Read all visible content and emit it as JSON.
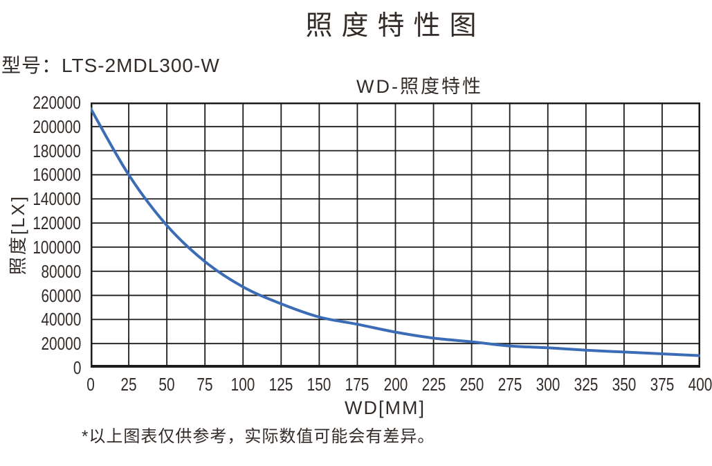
{
  "page_title": "照度特性图",
  "model_label": "型号：LTS-2MDL300-W",
  "footnote": "*以上图表仅供参考，实际数值可能会有差异。",
  "chart_data": {
    "type": "line",
    "title": "WD-照度特性",
    "xlabel": "WD[MM]",
    "ylabel": "照度[LX]",
    "x": [
      0,
      25,
      50,
      75,
      100,
      125,
      150,
      175,
      200,
      225,
      250,
      275,
      300,
      325,
      350,
      375,
      400
    ],
    "values": [
      215000,
      160000,
      118000,
      88000,
      67000,
      53000,
      42000,
      36000,
      29500,
      24500,
      21500,
      18000,
      16500,
      14500,
      13000,
      11500,
      10000
    ],
    "xlim": [
      0,
      400
    ],
    "ylim": [
      0,
      220000
    ],
    "x_tick_step": 25,
    "y_tick_step": 20000,
    "grid": true,
    "legend_position": "none",
    "line_color": "#3c6cb5",
    "grid_color": "#1b1b1b",
    "text_color": "#322b28"
  }
}
